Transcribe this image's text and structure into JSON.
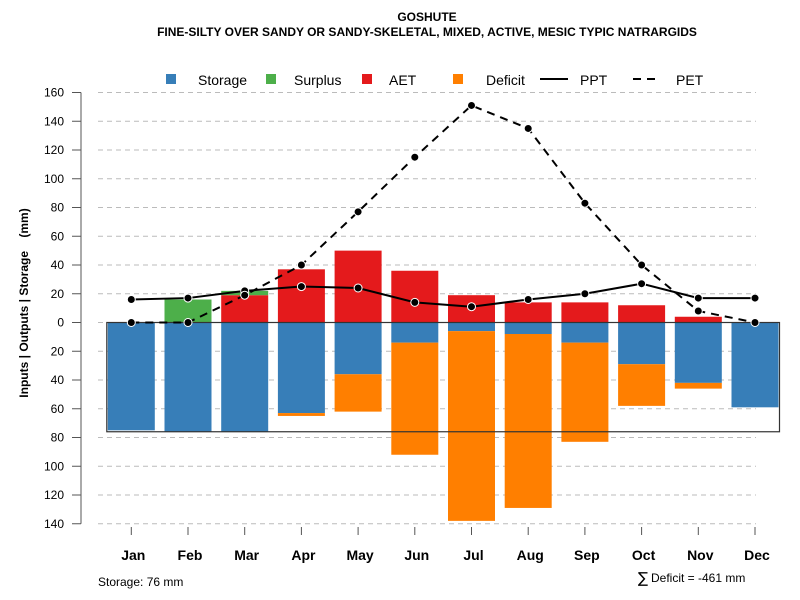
{
  "chart_data": {
    "type": "bar",
    "title": "GOSHUTE",
    "subtitle": "FINE-SILTY OVER SANDY OR SANDY-SKELETAL, MIXED, ACTIVE, MESIC TYPIC NATRARGIDS",
    "xlabel": "",
    "ylabel": "Inputs | Outputs | Storage    (mm)",
    "ylim": [
      -140,
      160
    ],
    "yticks": [
      160,
      140,
      120,
      100,
      80,
      60,
      40,
      20,
      0,
      -20,
      -40,
      -60,
      -80,
      -100,
      -120,
      -140
    ],
    "ytick_labels": [
      "160",
      "140",
      "120",
      "100",
      "80",
      "60",
      "40",
      "20",
      "0",
      "20",
      "40",
      "60",
      "80",
      "100",
      "120",
      "140"
    ],
    "grid": true,
    "legend_position": "top",
    "categories": [
      "Jan",
      "Feb",
      "Mar",
      "Apr",
      "May",
      "Jun",
      "Jul",
      "Aug",
      "Sep",
      "Oct",
      "Nov",
      "Dec"
    ],
    "bar_series": [
      {
        "name": "Storage",
        "color": "#377EB8",
        "direction": "down",
        "values": [
          75,
          76,
          76,
          63,
          36,
          14,
          6,
          8,
          14,
          29,
          42,
          59
        ]
      },
      {
        "name": "Surplus",
        "color": "#4DAF4A",
        "direction": "up",
        "values": [
          0,
          16,
          3,
          0,
          0,
          0,
          0,
          0,
          0,
          0,
          0,
          0
        ]
      },
      {
        "name": "AET",
        "color": "#E41A1C",
        "direction": "up",
        "values": [
          0,
          0,
          19,
          37,
          50,
          36,
          19,
          14,
          14,
          12,
          4,
          0
        ]
      },
      {
        "name": "Deficit",
        "color": "#FF7F00",
        "direction": "down",
        "values": [
          0,
          0,
          0,
          2,
          26,
          78,
          132,
          121,
          69,
          29,
          4,
          0
        ]
      }
    ],
    "line_series": [
      {
        "name": "PPT",
        "style": "solid",
        "color": "#000000",
        "values": [
          16,
          17,
          22,
          25,
          24,
          14,
          11,
          16,
          20,
          27,
          17,
          17
        ]
      },
      {
        "name": "PET",
        "style": "dashed",
        "color": "#000000",
        "values": [
          0,
          0,
          19,
          40,
          77,
          115,
          151,
          135,
          83,
          40,
          8,
          0
        ]
      }
    ],
    "storage_capacity": 76,
    "legend": [
      {
        "label": "Storage",
        "kind": "square",
        "color": "#377EB8"
      },
      {
        "label": "Surplus",
        "kind": "square",
        "color": "#4DAF4A"
      },
      {
        "label": "AET",
        "kind": "square",
        "color": "#E41A1C"
      },
      {
        "label": "Deficit",
        "kind": "square",
        "color": "#FF7F00"
      },
      {
        "label": "PPT",
        "kind": "line-solid",
        "color": "#000000"
      },
      {
        "label": "PET",
        "kind": "line-dashed",
        "color": "#000000"
      }
    ],
    "annotations": {
      "storage_text": "Storage: 76 mm",
      "deficit_symbol": "∑",
      "deficit_text": "Deficit = -461 mm"
    }
  }
}
